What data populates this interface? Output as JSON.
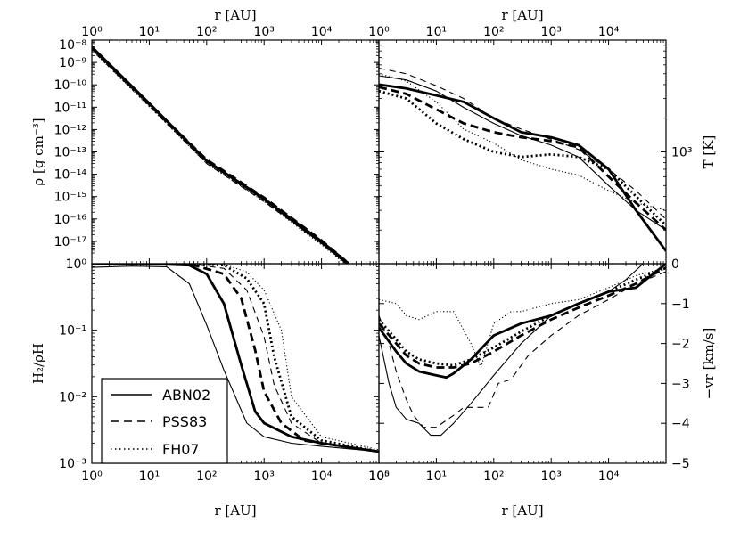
{
  "chart_data": [
    {
      "id": "density",
      "type": "line",
      "xlabel": "r [AU]",
      "ylabel": "ρ [g cm⁻³]",
      "xscale": "log",
      "yscale": "log",
      "xlim": [
        1,
        100000
      ],
      "ylim": [
        1e-18,
        1e-08
      ],
      "xticks": [
        {
          "v": 1,
          "label": "10⁰"
        },
        {
          "v": 10,
          "label": "10¹"
        },
        {
          "v": 100,
          "label": "10²"
        },
        {
          "v": 1000,
          "label": "10³"
        },
        {
          "v": 10000,
          "label": "10⁴"
        }
      ],
      "yticks": [
        {
          "v": 1e-08,
          "label": "10⁻⁸"
        },
        {
          "v": 1e-09,
          "label": "10⁻⁹"
        },
        {
          "v": 1e-10,
          "label": "10⁻¹⁰"
        },
        {
          "v": 1e-11,
          "label": "10⁻¹¹"
        },
        {
          "v": 1e-12,
          "label": "10⁻¹²"
        },
        {
          "v": 1e-13,
          "label": "10⁻¹³"
        },
        {
          "v": 1e-14,
          "label": "10⁻¹⁴"
        },
        {
          "v": 1e-15,
          "label": "10⁻¹⁵"
        },
        {
          "v": 1e-16,
          "label": "10⁻¹⁶"
        },
        {
          "v": 1e-17,
          "label": "10⁻¹⁷"
        }
      ],
      "series": [
        {
          "name": "ABN02",
          "style": "solid",
          "weight": "thick",
          "x": [
            1,
            10,
            100,
            1000,
            10000,
            30000
          ],
          "y": [
            5e-09,
            1.5e-11,
            4e-14,
            8e-16,
            1e-17,
            1e-18
          ]
        },
        {
          "name": "ABN02",
          "style": "solid",
          "weight": "thin",
          "x": [
            1,
            10,
            100,
            1000,
            10000,
            30000
          ],
          "y": [
            4e-09,
            1.3e-11,
            3.5e-14,
            7e-16,
            8e-18,
            8e-19
          ]
        },
        {
          "name": "PSS83",
          "style": "dashed",
          "weight": "thick",
          "x": [
            1,
            10,
            100,
            1000,
            10000,
            30000
          ],
          "y": [
            4.5e-09,
            1.4e-11,
            4.5e-14,
            9e-16,
            1.1e-17,
            1e-18
          ]
        },
        {
          "name": "PSS83",
          "style": "dashed",
          "weight": "thin",
          "x": [
            1,
            10,
            100,
            1000,
            10000,
            30000
          ],
          "y": [
            4e-09,
            1.2e-11,
            3e-14,
            6e-16,
            8e-18,
            8e-19
          ]
        },
        {
          "name": "FH07",
          "style": "dotted",
          "weight": "thick",
          "x": [
            1,
            10,
            100,
            1000,
            10000,
            30000
          ],
          "y": [
            4e-09,
            1.2e-11,
            3.5e-14,
            7e-16,
            9e-18,
            9e-19
          ]
        },
        {
          "name": "FH07",
          "style": "dotted",
          "weight": "thin",
          "x": [
            1,
            10,
            100,
            1000,
            10000,
            30000
          ],
          "y": [
            3.5e-09,
            1.1e-11,
            3e-14,
            6e-16,
            7e-18,
            7e-19
          ]
        }
      ]
    },
    {
      "id": "temperature",
      "type": "line",
      "xlabel": "r [AU]",
      "ylabel": "T [K]",
      "xscale": "log",
      "yscale": "log",
      "xlim": [
        1,
        100000
      ],
      "ylim": [
        100,
        10000
      ],
      "xticks": [
        {
          "v": 1,
          "label": "10⁰"
        },
        {
          "v": 10,
          "label": "10¹"
        },
        {
          "v": 100,
          "label": "10²"
        },
        {
          "v": 1000,
          "label": "10³"
        },
        {
          "v": 10000,
          "label": "10⁴"
        }
      ],
      "yticks": [
        {
          "v": 1000,
          "label": "10³"
        }
      ],
      "series": [
        {
          "name": "ABN02",
          "style": "solid",
          "weight": "thick",
          "x": [
            1,
            3,
            10,
            30,
            100,
            300,
            1000,
            3000,
            10000,
            30000,
            100000
          ],
          "y": [
            4000,
            3700,
            3200,
            2800,
            2000,
            1500,
            1350,
            1150,
            700,
            300,
            130
          ]
        },
        {
          "name": "ABN02",
          "style": "solid",
          "weight": "thin",
          "x": [
            1,
            3,
            10,
            30,
            100,
            300,
            1000,
            3000,
            10000,
            30000,
            100000
          ],
          "y": [
            4800,
            4400,
            3500,
            2500,
            1800,
            1400,
            1150,
            900,
            500,
            300,
            200
          ]
        },
        {
          "name": "PSS83",
          "style": "dashed",
          "weight": "thick",
          "x": [
            1,
            3,
            10,
            30,
            100,
            300,
            1000,
            3000,
            10000,
            30000,
            100000
          ],
          "y": [
            3800,
            3300,
            2400,
            1800,
            1500,
            1350,
            1250,
            1100,
            600,
            350,
            200
          ]
        },
        {
          "name": "PSS83",
          "style": "dashed",
          "weight": "thin",
          "x": [
            1,
            3,
            10,
            30,
            100,
            300,
            1000,
            3000,
            10000,
            30000,
            100000
          ],
          "y": [
            5600,
            5000,
            3900,
            3000,
            2000,
            1600,
            1300,
            1050,
            700,
            450,
            250
          ]
        },
        {
          "name": "FH07",
          "style": "dotted",
          "weight": "thick",
          "x": [
            1,
            3,
            10,
            30,
            100,
            300,
            1000,
            3000,
            10000,
            30000,
            100000
          ],
          "y": [
            3500,
            3000,
            1800,
            1300,
            1000,
            900,
            950,
            900,
            700,
            400,
            220
          ]
        },
        {
          "name": "FH07",
          "style": "dotted",
          "weight": "thin",
          "x": [
            1,
            3,
            10,
            30,
            100,
            300,
            1000,
            3000,
            10000,
            30000,
            100000
          ],
          "y": [
            5000,
            4300,
            2800,
            1600,
            1200,
            850,
            700,
            620,
            450,
            350,
            300
          ]
        }
      ]
    },
    {
      "id": "h2-fraction",
      "type": "line",
      "xlabel": "r [AU]",
      "ylabel": "H₂/ρH",
      "xscale": "log",
      "yscale": "log",
      "xlim": [
        1,
        100000
      ],
      "ylim": [
        0.001,
        1
      ],
      "xticks": [
        {
          "v": 1,
          "label": "10⁰"
        },
        {
          "v": 10,
          "label": "10¹"
        },
        {
          "v": 100,
          "label": "10²"
        },
        {
          "v": 1000,
          "label": "10³"
        },
        {
          "v": 10000,
          "label": "10⁴"
        },
        {
          "v": 100000,
          "label": "10⁵"
        }
      ],
      "yticks": [
        {
          "v": 1,
          "label": "10⁰"
        },
        {
          "v": 0.1,
          "label": "10⁻¹"
        },
        {
          "v": 0.01,
          "label": "10⁻²"
        },
        {
          "v": 0.001,
          "label": "10⁻³"
        }
      ],
      "series": [
        {
          "name": "ABN02",
          "style": "solid",
          "weight": "thick",
          "x": [
            1,
            10,
            50,
            100,
            200,
            400,
            700,
            1000,
            3000,
            10000,
            100000
          ],
          "y": [
            1,
            1,
            0.95,
            0.7,
            0.25,
            0.03,
            0.006,
            0.004,
            0.0025,
            0.002,
            0.0015
          ]
        },
        {
          "name": "ABN02",
          "style": "solid",
          "weight": "thin",
          "x": [
            1,
            5,
            20,
            50,
            100,
            200,
            500,
            1000,
            3000,
            10000,
            100000
          ],
          "y": [
            0.88,
            0.92,
            0.9,
            0.5,
            0.12,
            0.025,
            0.004,
            0.0025,
            0.002,
            0.0018,
            0.0015
          ]
        },
        {
          "name": "PSS83",
          "style": "dashed",
          "weight": "thick",
          "x": [
            1,
            10,
            50,
            200,
            400,
            700,
            1000,
            2000,
            5000,
            10000,
            100000
          ],
          "y": [
            1,
            1,
            1,
            0.7,
            0.3,
            0.05,
            0.012,
            0.004,
            0.0022,
            0.002,
            0.0015
          ]
        },
        {
          "name": "PSS83",
          "style": "dashed",
          "weight": "thin",
          "x": [
            1,
            10,
            50,
            200,
            500,
            1000,
            1500,
            3000,
            10000,
            100000
          ],
          "y": [
            1,
            1,
            1,
            0.85,
            0.4,
            0.08,
            0.015,
            0.004,
            0.002,
            0.0015
          ]
        },
        {
          "name": "FH07",
          "style": "dotted",
          "weight": "thick",
          "x": [
            1,
            10,
            50,
            200,
            500,
            1000,
            1500,
            3000,
            10000,
            100000
          ],
          "y": [
            1,
            1,
            1,
            0.95,
            0.6,
            0.25,
            0.04,
            0.005,
            0.0022,
            0.0015
          ]
        },
        {
          "name": "FH07",
          "style": "dotted",
          "weight": "thin",
          "x": [
            1,
            10,
            50,
            200,
            500,
            1000,
            2000,
            3000,
            10000,
            100000
          ],
          "y": [
            1,
            1,
            1,
            0.98,
            0.75,
            0.4,
            0.1,
            0.01,
            0.0025,
            0.0016
          ]
        }
      ]
    },
    {
      "id": "velocity",
      "type": "line",
      "xlabel": "r [AU]",
      "ylabel": "−vr [km/s]",
      "xscale": "log",
      "yscale": "linear",
      "xlim": [
        1,
        100000
      ],
      "ylim": [
        -5,
        0
      ],
      "xticks": [
        {
          "v": 1,
          "label": "10⁰"
        },
        {
          "v": 10,
          "label": "10¹"
        },
        {
          "v": 100,
          "label": "10²"
        },
        {
          "v": 1000,
          "label": "10³"
        },
        {
          "v": 10000,
          "label": "10⁴"
        }
      ],
      "yticks": [
        {
          "v": 0,
          "label": "0"
        },
        {
          "v": -1,
          "label": "−1"
        },
        {
          "v": -2,
          "label": "−2"
        },
        {
          "v": -3,
          "label": "−3"
        },
        {
          "v": -4,
          "label": "−4"
        },
        {
          "v": -5,
          "label": "−5"
        }
      ],
      "series": [
        {
          "name": "ABN02",
          "style": "solid",
          "weight": "thick",
          "x": [
            1,
            2,
            3,
            5,
            10,
            15,
            20,
            40,
            100,
            300,
            1000,
            3000,
            10000,
            30000,
            100000
          ],
          "y": [
            -1.6,
            -2.2,
            -2.5,
            -2.7,
            -2.8,
            -2.85,
            -2.75,
            -2.4,
            -1.8,
            -1.5,
            -1.3,
            -1.0,
            -0.7,
            -0.6,
            0.0
          ]
        },
        {
          "name": "ABN02",
          "style": "solid",
          "weight": "thin",
          "x": [
            1,
            1.5,
            2,
            3,
            5,
            8,
            12,
            20,
            40,
            100,
            300,
            1000,
            3000,
            10000,
            20000,
            40000,
            100000
          ],
          "y": [
            -1.8,
            -3.0,
            -3.6,
            -3.9,
            -4.0,
            -4.3,
            -4.3,
            -4.0,
            -3.5,
            -2.8,
            -2.0,
            -1.3,
            -1.0,
            -0.7,
            -0.4,
            0.0,
            0.0
          ]
        },
        {
          "name": "PSS83",
          "style": "dashed",
          "weight": "thick",
          "x": [
            1,
            2,
            3,
            5,
            10,
            20,
            40,
            100,
            300,
            1000,
            3000,
            10000,
            30000,
            100000
          ],
          "y": [
            -1.5,
            -2.0,
            -2.3,
            -2.5,
            -2.6,
            -2.6,
            -2.5,
            -2.2,
            -1.8,
            -1.4,
            -1.1,
            -0.8,
            -0.5,
            -0.1
          ]
        },
        {
          "name": "PSS83",
          "style": "dashed",
          "weight": "thin",
          "x": [
            1,
            1.5,
            2,
            3,
            4,
            6,
            10,
            20,
            30,
            50,
            80,
            120,
            200,
            400,
            1000,
            3000,
            10000,
            30000,
            100000
          ],
          "y": [
            -1.3,
            -2.0,
            -2.7,
            -3.4,
            -3.8,
            -4.1,
            -4.1,
            -3.8,
            -3.6,
            -3.6,
            -3.6,
            -3.0,
            -2.9,
            -2.3,
            -1.8,
            -1.3,
            -0.9,
            -0.5,
            -0.2
          ]
        },
        {
          "name": "FH07",
          "style": "dotted",
          "weight": "thick",
          "x": [
            1,
            2,
            3,
            5,
            10,
            20,
            40,
            100,
            300,
            1000,
            3000,
            10000,
            30000,
            100000
          ],
          "y": [
            -1.4,
            -1.9,
            -2.2,
            -2.4,
            -2.5,
            -2.55,
            -2.4,
            -2.1,
            -1.7,
            -1.3,
            -1.0,
            -0.7,
            -0.4,
            -0.1
          ]
        },
        {
          "name": "FH07",
          "style": "dotted",
          "weight": "thin",
          "x": [
            1,
            2,
            3,
            5,
            10,
            20,
            40,
            60,
            100,
            200,
            300,
            1000,
            3000,
            10000,
            30000,
            100000
          ],
          "y": [
            -0.9,
            -1.0,
            -1.3,
            -1.4,
            -1.2,
            -1.2,
            -2.0,
            -2.6,
            -1.5,
            -1.2,
            -1.2,
            -1.0,
            -0.9,
            -0.6,
            -0.3,
            -0.1
          ]
        }
      ]
    }
  ],
  "legend": {
    "placement": "lower-left",
    "entries": [
      {
        "label": "ABN02",
        "style": "solid"
      },
      {
        "label": "PSS83",
        "style": "dashed"
      },
      {
        "label": "FH07",
        "style": "dotted"
      }
    ]
  }
}
